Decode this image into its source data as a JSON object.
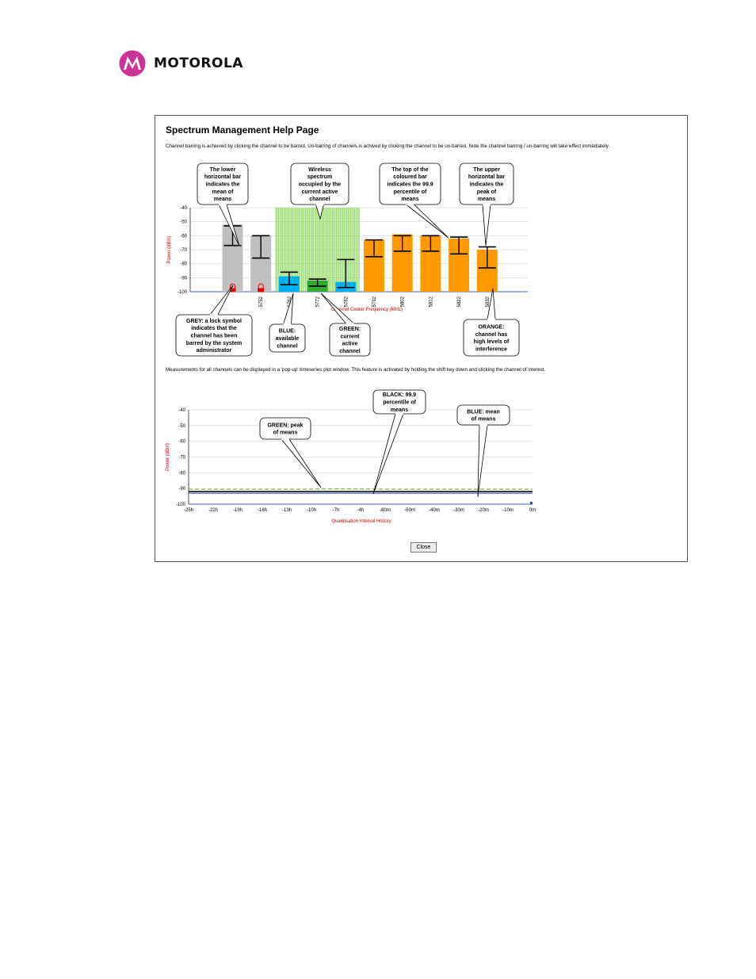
{
  "brand": {
    "name": "MOTOROLA",
    "mark_color": "#cc3399"
  },
  "page": {
    "title": "Spectrum Management Help Page",
    "intro": "Channel barring is achieved by clicking the channel to be barred. Un-barring of channels is achived by clicking the channel to be un-barred. Note the channel barring / un-barring will take effect immediately.",
    "popup_text": "Measurements for all channels can be displayed in a 'pop-up' timeseries plot window. This feature is activated by holding the shift key down and clicking the channel of interest.",
    "close_label": "Close"
  },
  "callouts_top": [
    {
      "lines": [
        "The lower",
        "horizontal bar",
        "indicates the",
        "mean of",
        "means"
      ]
    },
    {
      "lines": [
        "Wireless",
        "spectrum",
        "occupied by the",
        "current active",
        "channel"
      ]
    },
    {
      "lines": [
        "The top of the",
        "coloured bar",
        "indicates the 99.9",
        "percentile of",
        "means"
      ]
    },
    {
      "lines": [
        "The upper",
        "horizontal bar",
        "indicates the",
        "peak of",
        "means"
      ]
    }
  ],
  "callouts_bottom": [
    {
      "lines": [
        "GREY: a lock symbol",
        "indicates that the",
        "channel has been",
        "barred by the system",
        "administrator"
      ]
    },
    {
      "lines": [
        "BLUE:",
        "available",
        "channel"
      ]
    },
    {
      "lines": [
        "GREEN:",
        "current",
        "active",
        "channel"
      ]
    },
    {
      "lines": [
        "ORANGE:",
        "channel has",
        "high levels of",
        "interference"
      ]
    }
  ],
  "callouts_ts": [
    {
      "lines": [
        "GREEN: peak",
        "of means"
      ]
    },
    {
      "lines": [
        "BLACK: 99.9",
        "percentile of",
        "means"
      ]
    },
    {
      "lines": [
        "BLUE: mean",
        "of means"
      ]
    }
  ],
  "chart_data": [
    {
      "type": "bar",
      "xlabel": "Channel Center Frequency (MHz)",
      "ylabel": "Power (dBm)",
      "ylim": [
        -100,
        -40
      ],
      "yticks": [
        -40,
        -50,
        -60,
        -70,
        -80,
        -90,
        -100
      ],
      "grid": true,
      "colors": {
        "barred": "#c0c0c0",
        "available": "#00b0f0",
        "active": "#33aa33",
        "interference": "#ff9900",
        "active_spectrum": "#99dd66"
      },
      "channels": [
        {
          "label": "",
          "status": "barred",
          "top": -52,
          "upper": -53,
          "mean": -67
        },
        {
          "label": "5752",
          "status": "barred",
          "top": -60,
          "upper": -60,
          "mean": -76
        },
        {
          "label": "5762",
          "status": "available",
          "top": -89,
          "upper": -86,
          "mean": -95
        },
        {
          "label": "5772",
          "status": "active",
          "top": -92,
          "upper": -91,
          "mean": -96
        },
        {
          "label": "5782",
          "status": "available",
          "top": -93,
          "upper": -77,
          "mean": -97
        },
        {
          "label": "5792",
          "status": "interference",
          "top": -63,
          "upper": -63,
          "mean": -75
        },
        {
          "label": "5802",
          "status": "interference",
          "top": -59,
          "upper": -60,
          "mean": -71
        },
        {
          "label": "5812",
          "status": "interference",
          "top": -60,
          "upper": -60,
          "mean": -71
        },
        {
          "label": "5822",
          "status": "interference",
          "top": -62,
          "upper": -61,
          "mean": -73
        },
        {
          "label": "5832",
          "status": "interference",
          "top": -70,
          "upper": -68,
          "mean": -83
        }
      ]
    },
    {
      "type": "line",
      "xlabel": "Quantisation Interval History",
      "ylabel": "Power (dBm)",
      "ylim": [
        -100,
        -40
      ],
      "yticks": [
        -40,
        -50,
        -60,
        -70,
        -80,
        -90,
        -100
      ],
      "x_labels": [
        "-25h",
        "-22h",
        "-19h",
        "-16h",
        "-13h",
        "-10h",
        "-7h",
        "-4h",
        "-80m",
        "-50m",
        "-40m",
        "-30m",
        "-20m",
        "-10m",
        "0m"
      ],
      "grid": true,
      "series": [
        {
          "color": "#66aa22",
          "values": [
            -90.5,
            -90.5,
            -90.5,
            -90.5,
            -90.5,
            -90.5,
            -90.3,
            -90.4,
            -90.5,
            -90.5,
            -90.5,
            -90.5,
            -90.5,
            -90.5,
            -90.5
          ]
        },
        {
          "color": "#000000",
          "values": [
            -92,
            -92,
            -92,
            -92,
            -92,
            -92,
            -92,
            -92,
            -92,
            -92,
            -92,
            -92,
            -92,
            -92,
            -92
          ]
        },
        {
          "color": "#2244cc",
          "values": [
            -93,
            -93,
            -93,
            -93,
            -93,
            -93,
            -93,
            -93,
            -93,
            -93,
            -93,
            -93,
            -93,
            -93,
            -93
          ]
        }
      ]
    }
  ]
}
